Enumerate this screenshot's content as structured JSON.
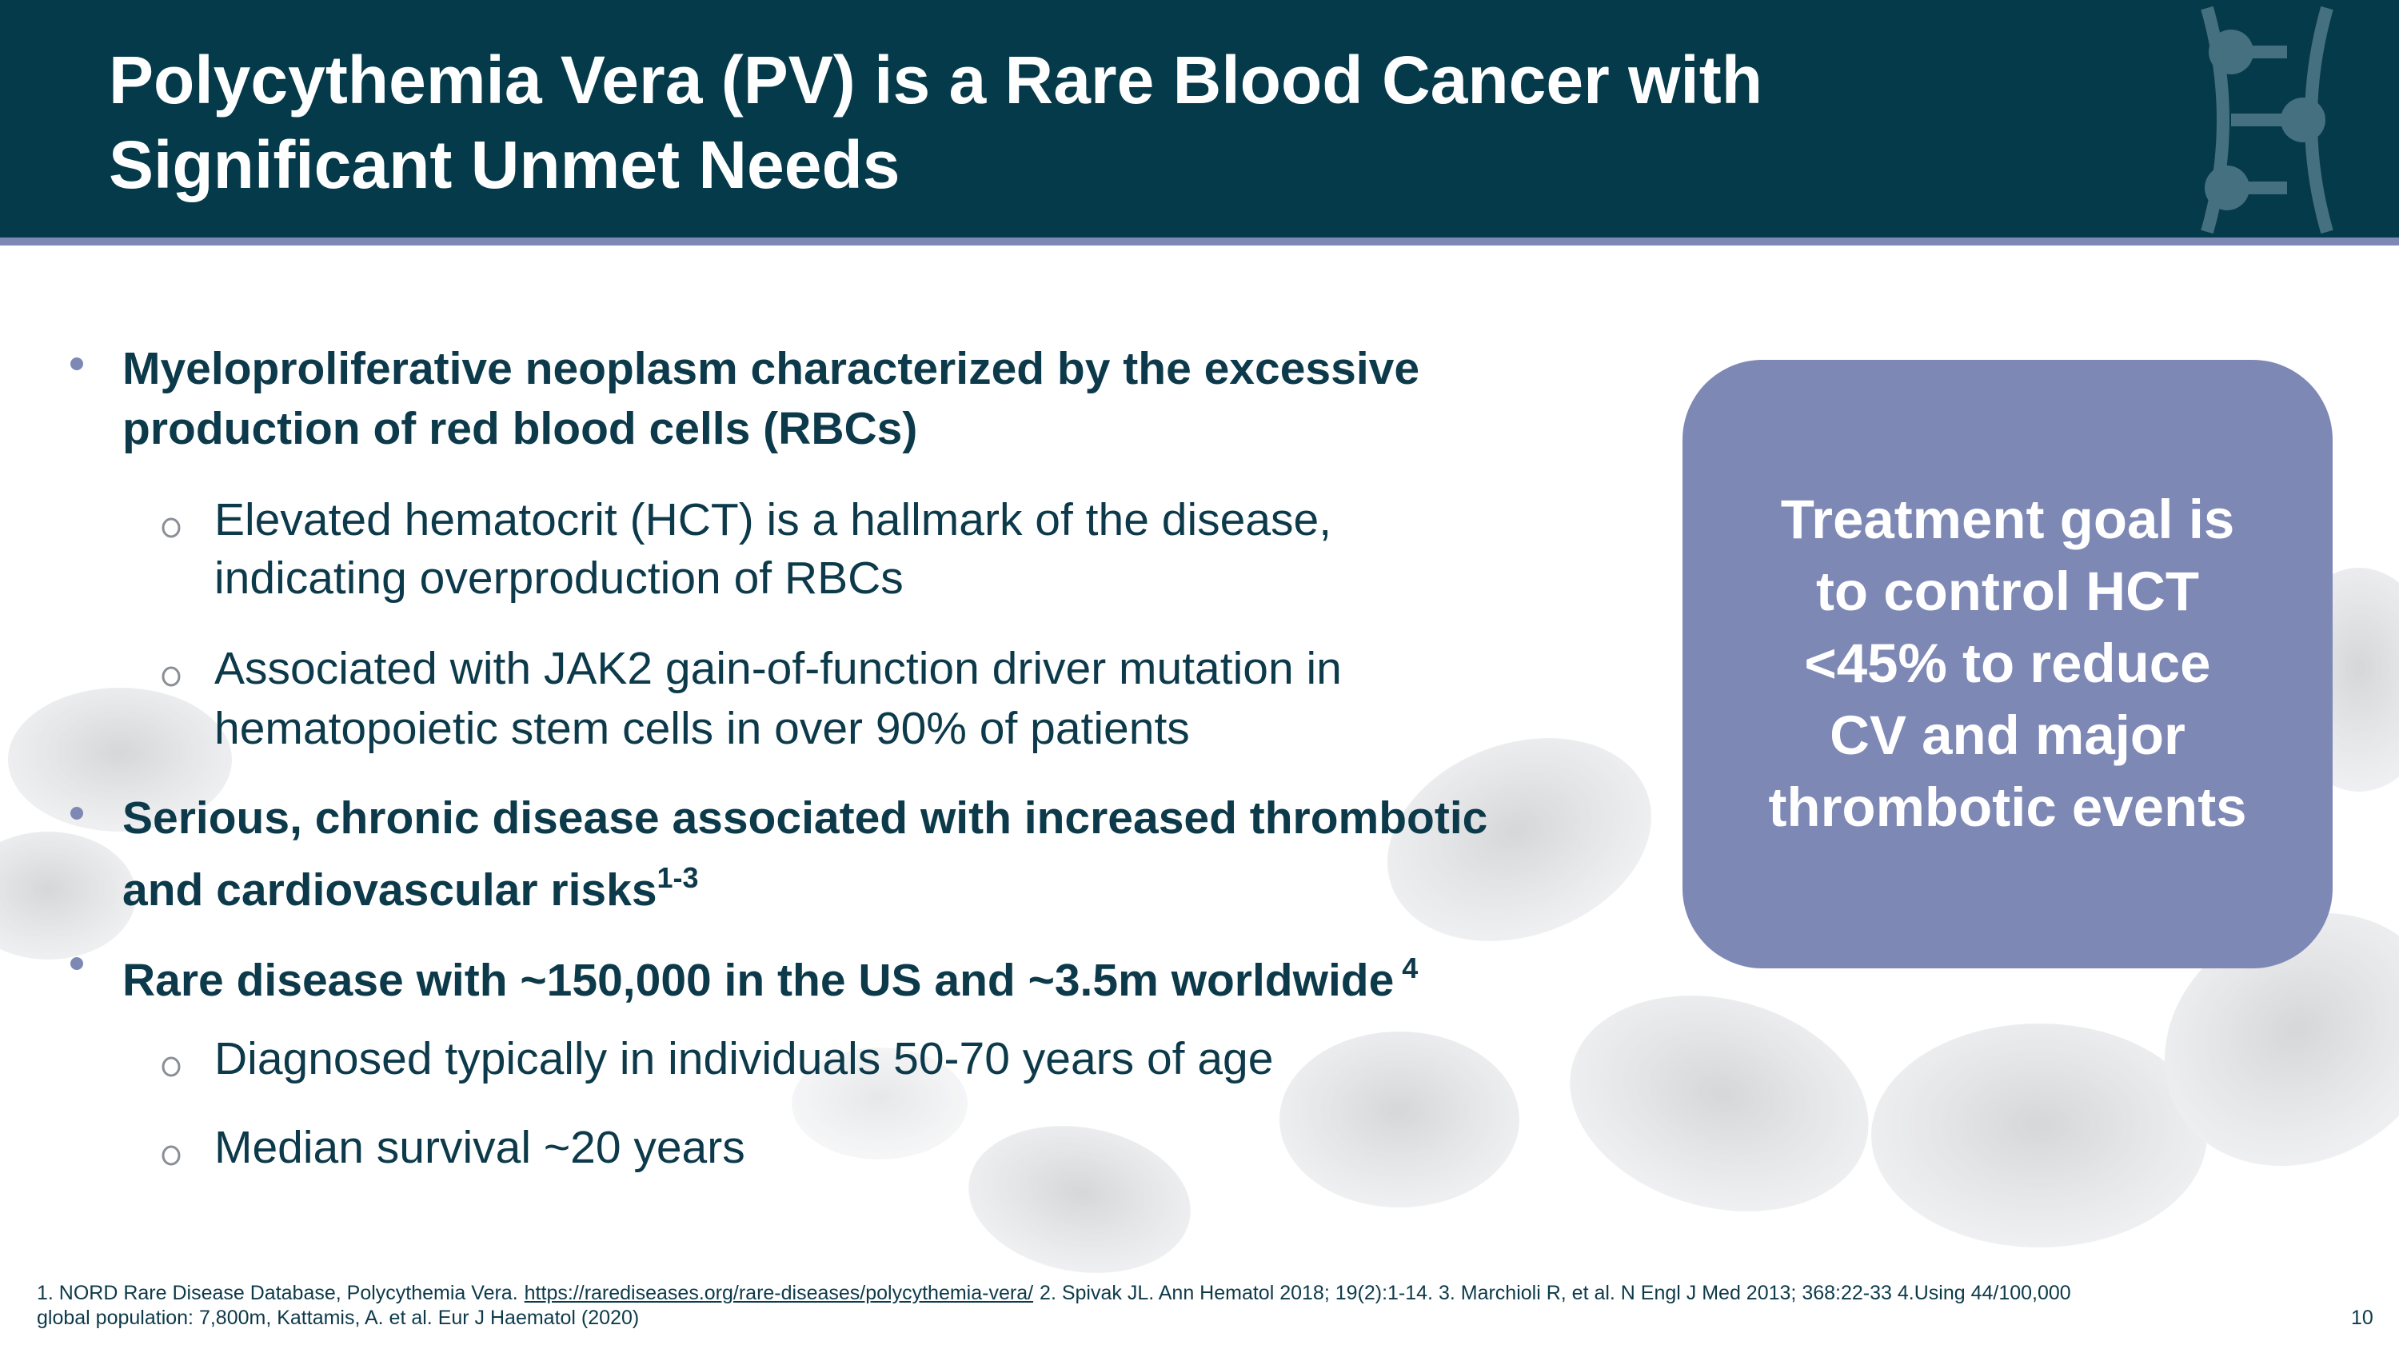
{
  "header": {
    "title_lines": [
      "Polycythemia Vera (PV) is a Rare Blood Cancer with",
      "Significant Unmet Needs"
    ]
  },
  "bullets": [
    {
      "lines": [
        "Myeloproliferative neoplasm characterized by the excessive",
        "production of red blood cells (RBCs)"
      ],
      "children": [
        {
          "lines": [
            "Elevated hematocrit (HCT) is a hallmark of the disease,",
            "indicating overproduction of RBCs"
          ]
        },
        {
          "lines": [
            "Associated with JAK2 gain-of-function driver mutation in",
            "hematopoietic stem cells in over 90% of patients"
          ]
        }
      ]
    },
    {
      "lines": [
        "Serious, chronic disease associated with increased thrombotic",
        "and cardiovascular risks"
      ],
      "sup": "1-3"
    },
    {
      "lines": [
        "Rare disease with ~150,000 in the US and ~3.5m worldwide"
      ],
      "sup": "4",
      "children": [
        {
          "lines": [
            "Diagnosed typically in individuals 50-70 years of age"
          ]
        },
        {
          "lines": [
            "Median survival ~20 years"
          ]
        }
      ]
    }
  ],
  "callout": {
    "lines": [
      "Treatment goal is",
      "to control HCT",
      "<45% to reduce",
      "CV and major",
      "thrombotic events"
    ]
  },
  "footnote": {
    "line1_before": "1. NORD Rare Disease Database, Polycythemia Vera.",
    "link": "https://rarediseases.org/rare-diseases/polycythemia-vera/",
    "line1_after": "2. Spivak JL. Ann Hematol 2018; 19(2):1-14. 3. Marchioli R, et al. N Engl J Med 2013; 368:22-33 4.Using 44/100,000",
    "line2": "global population: 7,800m, Kattamis, A. et al. Eur J Haematol (2020)"
  },
  "page_number": "10"
}
